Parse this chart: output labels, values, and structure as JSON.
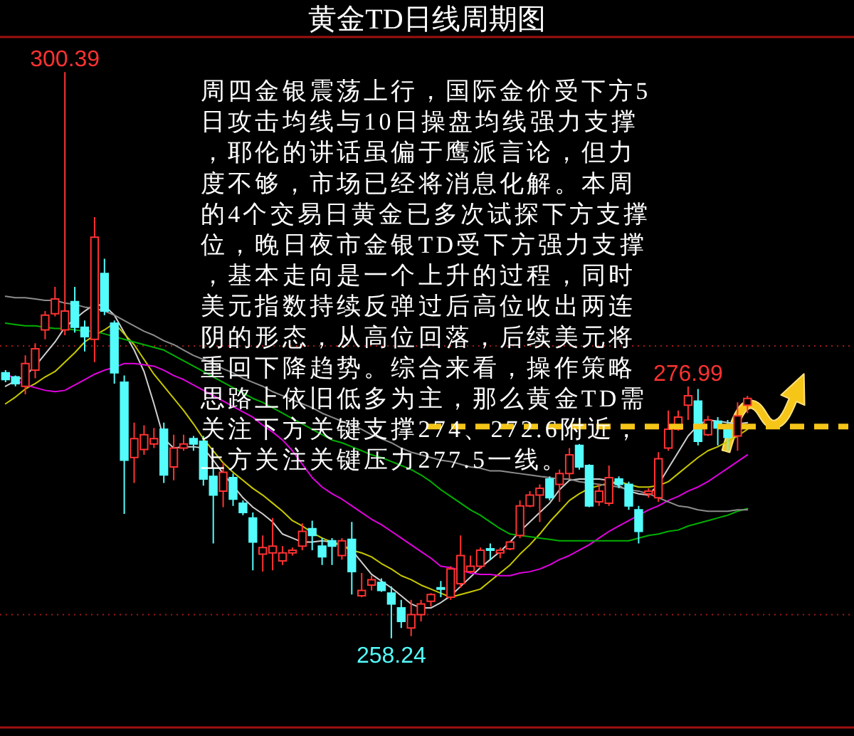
{
  "chart_data": {
    "type": "candlestick",
    "title": "黄金TD日线周期图",
    "categories": [
      null,
      null,
      null,
      null,
      null,
      null,
      null,
      null,
      null,
      null,
      null,
      null,
      null,
      null,
      null,
      null,
      null,
      null,
      null,
      null,
      null,
      null,
      null,
      null,
      null,
      null,
      null,
      null,
      null,
      null,
      null,
      null,
      null,
      null,
      null,
      null,
      null,
      null,
      null,
      null,
      null,
      null,
      null,
      null,
      null,
      null,
      null,
      null,
      null,
      null,
      null,
      null,
      null,
      null,
      null,
      null,
      null,
      null,
      null,
      null,
      null,
      null,
      null,
      null,
      null,
      null,
      null,
      null,
      null,
      null,
      null,
      null,
      null,
      null,
      null,
      null
    ],
    "ohlc": [
      [
        278.0,
        278.2,
        277.3,
        277.5
      ],
      [
        277.7,
        277.8,
        277.0,
        277.2
      ],
      [
        277.0,
        279.3,
        276.4,
        278.7
      ],
      [
        278.2,
        280.2,
        277.6,
        279.8
      ],
      [
        281.2,
        282.6,
        280.5,
        282.3
      ],
      [
        282.4,
        284.4,
        282.2,
        283.5
      ],
      [
        281.2,
        300.39,
        280.8,
        282.6
      ],
      [
        283.3,
        284.4,
        281.0,
        281.4
      ],
      [
        281.4,
        281.9,
        279.6,
        280.7
      ],
      [
        280.5,
        289.6,
        278.8,
        288.1
      ],
      [
        285.4,
        286.5,
        282.3,
        282.6
      ],
      [
        281.7,
        281.9,
        277.2,
        278.0
      ],
      [
        277.3,
        277.8,
        267.5,
        271.5
      ],
      [
        271.7,
        274.3,
        269.8,
        273.1
      ],
      [
        272.3,
        274.1,
        271.9,
        273.4
      ],
      [
        272.7,
        273.9,
        272.4,
        273.1
      ],
      [
        273.8,
        274.3,
        269.8,
        270.4
      ],
      [
        271.0,
        273.4,
        270.0,
        272.4
      ],
      [
        272.4,
        273.4,
        272.2,
        272.7
      ],
      [
        273.1,
        273.3,
        272.2,
        272.7
      ],
      [
        272.9,
        273.3,
        269.6,
        270.1
      ],
      [
        270.3,
        270.9,
        265.3,
        268.9
      ],
      [
        269.2,
        271.3,
        268.0,
        270.6
      ],
      [
        270.2,
        270.5,
        268.1,
        268.6
      ],
      [
        268.3,
        268.5,
        267.4,
        267.6
      ],
      [
        267.2,
        267.6,
        263.3,
        265.4
      ],
      [
        264.5,
        265.9,
        263.2,
        265.0
      ],
      [
        264.6,
        267.2,
        263.3,
        265.1
      ],
      [
        264.0,
        265.1,
        263.7,
        264.6
      ],
      [
        264.6,
        265.0,
        264.4,
        264.8
      ],
      [
        265.1,
        266.8,
        264.8,
        266.2
      ],
      [
        266.4,
        267.0,
        264.8,
        265.9
      ],
      [
        265.1,
        265.7,
        263.7,
        264.3
      ],
      [
        265.5,
        265.7,
        263.7,
        265.1
      ],
      [
        264.4,
        265.7,
        264.1,
        265.5
      ],
      [
        265.6,
        266.9,
        261.5,
        263.2
      ],
      [
        261.4,
        263.1,
        261.3,
        261.8
      ],
      [
        262.2,
        262.9,
        261.8,
        262.6
      ],
      [
        262.4,
        262.7,
        261.7,
        261.8
      ],
      [
        261.6,
        262.1,
        258.24,
        260.8
      ],
      [
        260.5,
        261.1,
        259.0,
        259.5
      ],
      [
        259.0,
        261.1,
        258.4,
        260.0
      ],
      [
        260.0,
        261.1,
        259.5,
        260.8
      ],
      [
        261.0,
        261.6,
        260.6,
        261.5
      ],
      [
        262.0,
        262.5,
        261.3,
        261.9
      ],
      [
        261.3,
        263.6,
        261.1,
        263.4
      ],
      [
        262.3,
        265.9,
        262.0,
        264.4
      ],
      [
        263.2,
        264.4,
        263.1,
        263.6
      ],
      [
        263.6,
        265.0,
        263.4,
        264.8
      ],
      [
        264.9,
        265.3,
        264.1,
        264.8
      ],
      [
        264.6,
        265.0,
        264.2,
        264.8
      ],
      [
        264.9,
        265.5,
        264.8,
        265.4
      ],
      [
        265.9,
        268.5,
        265.7,
        268.1
      ],
      [
        268.1,
        269.2,
        268.0,
        268.9
      ],
      [
        268.9,
        269.7,
        266.9,
        269.4
      ],
      [
        270.1,
        270.3,
        268.5,
        268.7
      ],
      [
        269.7,
        270.8,
        268.4,
        270.5
      ],
      [
        270.5,
        272.4,
        270.1,
        271.9
      ],
      [
        272.6,
        272.7,
        270.8,
        271.0
      ],
      [
        271.1,
        271.2,
        268.0,
        268.1
      ],
      [
        268.4,
        269.7,
        268.1,
        269.2
      ],
      [
        268.3,
        271.1,
        268.1,
        270.2
      ],
      [
        270.1,
        270.3,
        269.4,
        269.7
      ],
      [
        269.7,
        269.9,
        267.8,
        268.1
      ],
      [
        267.8,
        268.1,
        265.3,
        266.2
      ],
      [
        269.0,
        269.4,
        268.7,
        269.2
      ],
      [
        268.7,
        272.1,
        268.4,
        271.6
      ],
      [
        272.4,
        275.2,
        272.2,
        273.8
      ],
      [
        273.8,
        275.2,
        273.7,
        274.7
      ],
      [
        275.6,
        276.99,
        274.5,
        276.3
      ],
      [
        275.9,
        276.8,
        272.6,
        272.9
      ],
      [
        273.4,
        274.8,
        273.3,
        274.5
      ],
      [
        274.4,
        274.7,
        272.6,
        273.9
      ],
      [
        273.8,
        274.5,
        272.2,
        273.2
      ],
      [
        273.3,
        275.8,
        272.2,
        274.8
      ],
      [
        275.6,
        276.3,
        275.0,
        276.1
      ]
    ],
    "colors": [
      "#54fcfc",
      "#54fcfc",
      "#ff3232",
      "#ff3232",
      "#ff3232",
      "#ff3232",
      "#ff3232",
      "#54fcfc",
      "#54fcfc",
      "#ff3232",
      "#54fcfc",
      "#54fcfc",
      "#54fcfc",
      "#ff3232",
      "#ff3232",
      "#ff3232",
      "#54fcfc",
      "#ff3232",
      "#ff3232",
      "#54fcfc",
      "#54fcfc",
      "#54fcfc",
      "#ff3232",
      "#54fcfc",
      "#54fcfc",
      "#54fcfc",
      "#ff3232",
      "#ff3232",
      "#ff3232",
      "#ff3232",
      "#ff3232",
      "#54fcfc",
      "#54fcfc",
      "#54fcfc",
      "#ff3232",
      "#54fcfc",
      "#ff3232",
      "#ff3232",
      "#54fcfc",
      "#54fcfc",
      "#54fcfc",
      "#ff3232",
      "#ff3232",
      "#ff3232",
      "#54fcfc",
      "#ff3232",
      "#ff3232",
      "#ff3232",
      "#ff3232",
      "#54fcfc",
      "#ff3232",
      "#ff3232",
      "#ff3232",
      "#ff3232",
      "#ff3232",
      "#54fcfc",
      "#ff3232",
      "#ff3232",
      "#54fcfc",
      "#54fcfc",
      "#ff3232",
      "#ff3232",
      "#54fcfc",
      "#54fcfc",
      "#54fcfc",
      "#ff3232",
      "#ff3232",
      "#ff3232",
      "#ff3232",
      "#ff3232",
      "#54fcfc",
      "#ff3232",
      "#54fcfc",
      "#54fcfc",
      "#ff3232",
      "#ff3232"
    ],
    "series": [
      {
        "type": "line",
        "color": "#d0d0d0",
        "values": [
          277.0,
          277.4,
          277.8,
          278.5,
          279.4,
          280.3,
          281.4,
          282.0,
          282.6,
          283.1,
          283.0,
          282.3,
          281.0,
          279.7,
          278.1,
          275.7,
          273.1,
          272.4,
          272.5,
          272.5,
          272.4,
          271.5,
          270.5,
          269.6,
          268.7,
          268.0,
          267.5,
          266.9,
          266.0,
          265.7,
          265.4,
          265.4,
          265.5,
          265.4,
          265.2,
          264.8,
          263.9,
          263.0,
          262.5,
          262.0,
          261.4,
          260.8,
          260.5,
          260.5,
          260.9,
          261.4,
          262.1,
          262.8,
          263.5,
          264.1,
          264.7,
          265.4,
          266.2,
          266.9,
          267.6,
          268.3,
          269.3,
          270.0,
          270.1,
          270.1,
          270.1,
          270.0,
          269.6,
          269.2,
          269.0,
          268.9,
          269.7,
          270.9,
          272.1,
          273.3,
          274.1,
          274.5,
          274.4,
          274.3,
          274.2,
          274.3
        ]
      },
      {
        "type": "line",
        "color": "#c8c800",
        "values": [
          275.7,
          276.2,
          276.8,
          277.2,
          277.7,
          278.1,
          278.8,
          279.5,
          280.3,
          280.8,
          281.2,
          281.7,
          280.9,
          280.1,
          279.0,
          277.9,
          277.0,
          276.1,
          275.2,
          274.2,
          273.1,
          272.2,
          271.3,
          270.6,
          270.0,
          269.4,
          268.9,
          268.3,
          267.7,
          267.0,
          266.6,
          266.1,
          265.7,
          265.4,
          265.1,
          264.8,
          264.6,
          264.3,
          263.8,
          263.4,
          262.9,
          262.6,
          262.2,
          261.9,
          261.6,
          261.3,
          261.5,
          261.7,
          261.9,
          262.5,
          263.1,
          263.7,
          264.5,
          265.2,
          266.0,
          266.9,
          267.7,
          268.5,
          269.0,
          269.4,
          269.6,
          269.8,
          269.9,
          269.7,
          269.5,
          269.5,
          269.6,
          269.9,
          270.5,
          271.1,
          271.7,
          272.2,
          272.5,
          272.9,
          273.3,
          273.8
        ]
      },
      {
        "type": "line",
        "color": "#e000e0",
        "values": [
          278.0,
          277.5,
          277.1,
          276.9,
          276.7,
          276.6,
          276.7,
          277.1,
          277.5,
          277.9,
          278.2,
          278.4,
          278.7,
          278.7,
          278.6,
          278.5,
          278.2,
          277.8,
          277.5,
          277.1,
          276.7,
          276.3,
          275.9,
          275.5,
          275.1,
          274.7,
          274.1,
          273.6,
          273.0,
          272.2,
          271.2,
          270.2,
          269.5,
          269.0,
          268.6,
          268.1,
          267.6,
          267.1,
          266.7,
          266.2,
          265.7,
          265.2,
          264.7,
          264.2,
          263.6,
          263.5,
          263.3,
          263.1,
          263.0,
          263.0,
          262.9,
          262.9,
          263.1,
          263.2,
          263.4,
          263.7,
          264.1,
          264.4,
          264.8,
          265.2,
          265.7,
          266.2,
          266.6,
          267.0,
          267.4,
          267.8,
          268.1,
          268.5,
          268.8,
          269.2,
          269.5,
          269.9,
          270.4,
          270.9,
          271.4,
          271.9
        ]
      },
      {
        "type": "line",
        "color": "#00b000",
        "values": [
          281.7,
          281.6,
          281.5,
          281.5,
          281.4,
          281.3,
          281.3,
          281.2,
          281.1,
          281.1,
          280.9,
          280.7,
          280.5,
          280.3,
          280.1,
          279.9,
          279.7,
          279.3,
          278.9,
          278.5,
          278.1,
          277.7,
          277.3,
          276.9,
          276.5,
          276.1,
          275.8,
          275.4,
          275.0,
          274.6,
          274.2,
          273.8,
          273.4,
          273.0,
          272.8,
          272.5,
          272.2,
          271.9,
          271.7,
          271.4,
          271.1,
          270.8,
          270.4,
          269.9,
          269.3,
          268.8,
          268.3,
          267.8,
          267.4,
          266.9,
          266.4,
          266.0,
          265.9,
          265.8,
          265.7,
          265.6,
          265.5,
          265.5,
          265.5,
          265.5,
          265.5,
          265.5,
          265.5,
          265.5,
          265.7,
          265.9,
          266.0,
          266.2,
          266.3,
          266.6,
          266.8,
          267.0,
          267.2,
          267.4,
          267.7,
          267.9
        ]
      },
      {
        "type": "line",
        "color": "#8c8c8c",
        "values": [
          283.7,
          283.6,
          283.6,
          283.5,
          283.4,
          283.4,
          283.2,
          283.1,
          282.9,
          282.8,
          282.6,
          282.3,
          281.9,
          281.5,
          281.1,
          280.8,
          280.4,
          280.1,
          279.7,
          279.3,
          279.0,
          278.7,
          278.3,
          278.0,
          277.6,
          277.3,
          277.0,
          276.6,
          276.3,
          276.0,
          275.7,
          275.4,
          275.0,
          274.7,
          274.4,
          274.1,
          273.8,
          273.4,
          273.1,
          272.8,
          272.4,
          272.1,
          271.9,
          271.7,
          271.5,
          271.4,
          271.2,
          271.0,
          270.9,
          270.7,
          270.7,
          270.6,
          270.5,
          270.4,
          270.3,
          270.2,
          270.1,
          270.1,
          269.9,
          269.8,
          269.7,
          269.6,
          269.5,
          269.3,
          269.2,
          269.0,
          268.7,
          268.4,
          268.1,
          268.0,
          267.8,
          267.7,
          267.7,
          267.7,
          267.8,
          267.8
        ]
      }
    ],
    "ylim": [
      251.6,
      302.9
    ],
    "yticks": [
      {
        "value": 260,
        "label": null
      },
      {
        "value": 280,
        "label": null
      }
    ],
    "grid": "y",
    "ref_lines": [
      {
        "axis": "y",
        "value": 274,
        "color": "#f5c518",
        "line_style": "dashed"
      }
    ],
    "annotations": [
      "周四金银震荡上行，国际金价受下方5日攻击均线与10日操盘均线强力支撑，耶伦的讲话虽偏于鹰派言论，但力度不够，市场已经将消息化解。本周的4个交易日黄金已多次试探下方支撑位，晚日夜市金银TD受下方强力支撑，基本走向是一个上升的过程，同时美元指数持续反弹过后高位收出两连阴的形态，从高位回落，后续美元将重回下降趋势。综合来看，操作策略思路上依旧低多为主，那么黄金TD需关注下方关键支撑274、272.6附近，上方关注关键压力277.5一线。",
      {
        "text": "300.39",
        "y": 300.39
      },
      {
        "text": "276.99",
        "y": 276.99
      },
      {
        "text": "258.24",
        "y": 258.24
      }
    ]
  }
}
